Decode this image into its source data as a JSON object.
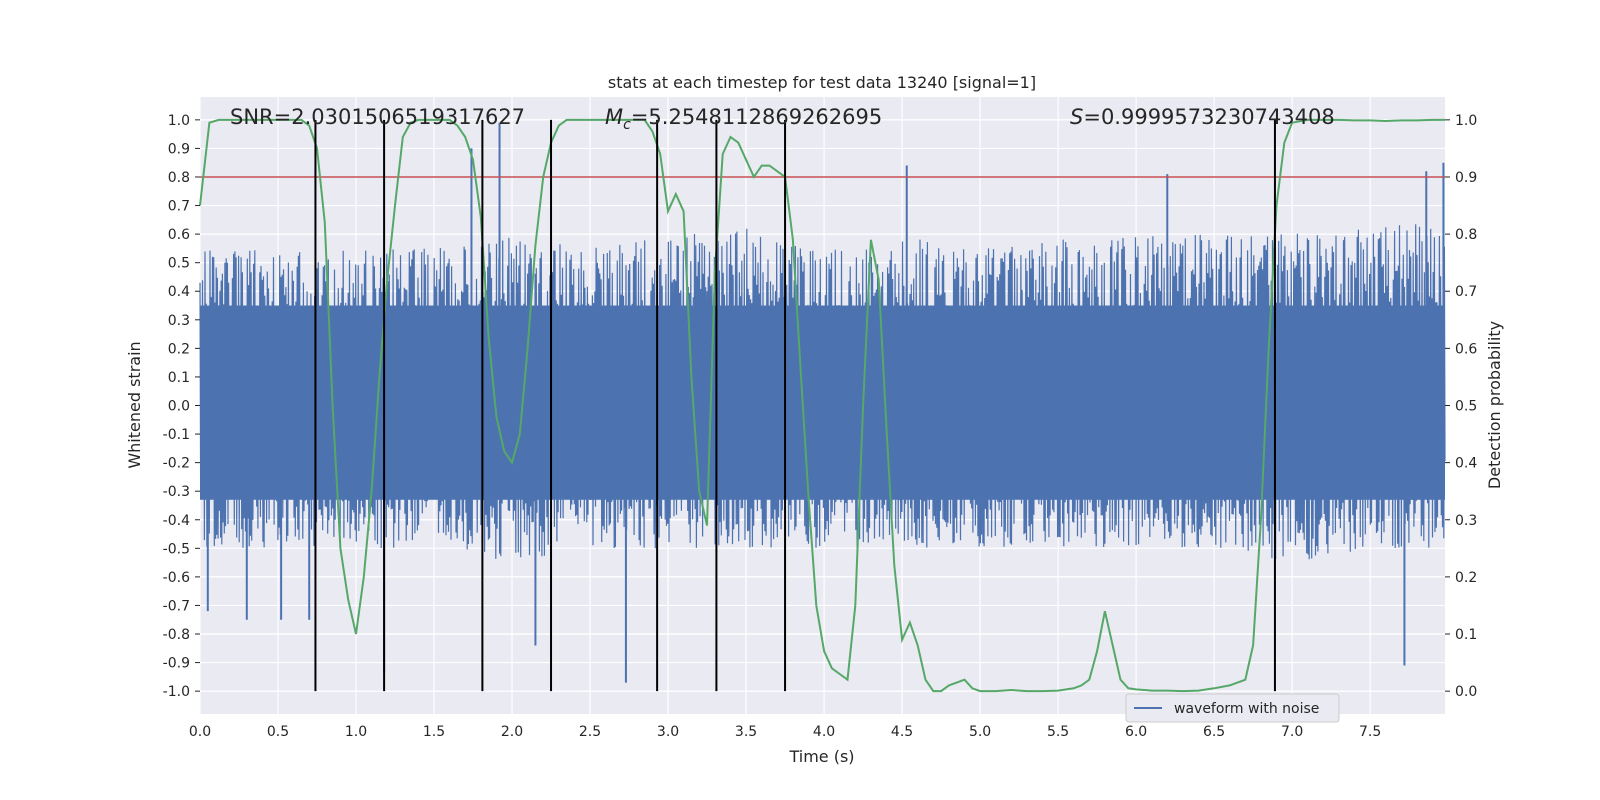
{
  "chart_data": {
    "type": "line",
    "title": "stats at each timestep for test data 13240 [signal=1]",
    "xlabel": "Time (s)",
    "ylabel": "Whitened strain",
    "ylabel_right": "Detection probability",
    "xlim": [
      0.0,
      7.98
    ],
    "ylim": [
      -1.08,
      1.08
    ],
    "ylim_right": [
      -0.04,
      1.04
    ],
    "x_ticks": [
      0.0,
      0.5,
      1.0,
      1.5,
      2.0,
      2.5,
      3.0,
      3.5,
      4.0,
      4.5,
      5.0,
      5.5,
      6.0,
      6.5,
      7.0,
      7.5
    ],
    "y_ticks": [
      -1.0,
      -0.9,
      -0.8,
      -0.7,
      -0.6,
      -0.5,
      -0.4,
      -0.3,
      -0.2,
      -0.1,
      0.0,
      0.1,
      0.2,
      0.3,
      0.4,
      0.5,
      0.6,
      0.7,
      0.8,
      0.9,
      1.0
    ],
    "y_ticks_right": [
      0.0,
      0.1,
      0.2,
      0.3,
      0.4,
      0.5,
      0.6,
      0.7,
      0.8,
      0.9,
      1.0
    ],
    "grid": true,
    "legend": {
      "entries": [
        "waveform with noise"
      ],
      "placement": "lower-center"
    },
    "annotations": {
      "snr": "SNR=2.0301506519317627",
      "mc_symbol": "M",
      "mc_sub": "c",
      "mc_value": "=5.2548112869262695",
      "s_symbol": "S",
      "s_value": "=0.9999573230743408"
    },
    "threshold": {
      "value": 0.9,
      "axis": "right",
      "color": "#c44e52"
    },
    "vlines": [
      0.74,
      1.18,
      1.81,
      2.25,
      2.93,
      3.31,
      3.75,
      6.89
    ],
    "series": [
      {
        "name": "waveform with noise",
        "axis": "left",
        "color": "#4c72b0",
        "envelope": {
          "x": [
            0.0,
            0.5,
            1.0,
            1.5,
            2.0,
            2.5,
            3.0,
            3.5,
            4.0,
            4.5,
            5.0,
            5.5,
            6.0,
            6.5,
            7.0,
            7.5,
            7.98
          ],
          "typical_max": [
            0.55,
            0.55,
            0.55,
            0.55,
            0.6,
            0.55,
            0.6,
            0.62,
            0.55,
            0.6,
            0.55,
            0.58,
            0.6,
            0.6,
            0.6,
            0.62,
            0.65
          ],
          "typical_min": [
            -0.5,
            -0.5,
            -0.5,
            -0.5,
            -0.55,
            -0.5,
            -0.5,
            -0.5,
            -0.5,
            -0.5,
            -0.5,
            -0.5,
            -0.5,
            -0.5,
            -0.55,
            -0.5,
            -0.5
          ]
        },
        "spikes": [
          {
            "x": 0.3,
            "y": -0.75
          },
          {
            "x": 0.52,
            "y": -0.75
          },
          {
            "x": 0.7,
            "y": -0.75
          },
          {
            "x": 1.18,
            "y": -0.93
          },
          {
            "x": 1.74,
            "y": 0.9
          },
          {
            "x": 1.92,
            "y": 0.99
          },
          {
            "x": 2.15,
            "y": -0.84
          },
          {
            "x": 2.73,
            "y": -0.97
          },
          {
            "x": 4.53,
            "y": 0.84
          },
          {
            "x": 6.2,
            "y": 0.81
          },
          {
            "x": 7.72,
            "y": -0.91
          },
          {
            "x": 7.86,
            "y": 0.82
          },
          {
            "x": 7.97,
            "y": 0.85
          },
          {
            "x": 0.05,
            "y": -0.72
          }
        ]
      },
      {
        "name": "detection probability",
        "axis": "right",
        "color": "#55a868",
        "x": [
          0.0,
          0.06,
          0.12,
          0.2,
          0.3,
          0.4,
          0.5,
          0.6,
          0.65,
          0.7,
          0.75,
          0.8,
          0.85,
          0.9,
          0.95,
          1.0,
          1.05,
          1.1,
          1.15,
          1.2,
          1.25,
          1.3,
          1.35,
          1.4,
          1.45,
          1.5,
          1.6,
          1.65,
          1.7,
          1.75,
          1.8,
          1.85,
          1.9,
          1.95,
          2.0,
          2.05,
          2.1,
          2.15,
          2.2,
          2.25,
          2.3,
          2.35,
          2.4,
          2.5,
          2.6,
          2.7,
          2.8,
          2.85,
          2.9,
          2.95,
          3.0,
          3.05,
          3.1,
          3.15,
          3.2,
          3.25,
          3.3,
          3.35,
          3.4,
          3.45,
          3.5,
          3.55,
          3.6,
          3.65,
          3.7,
          3.75,
          3.8,
          3.85,
          3.9,
          3.95,
          4.0,
          4.05,
          4.1,
          4.15,
          4.2,
          4.25,
          4.3,
          4.35,
          4.4,
          4.45,
          4.5,
          4.55,
          4.6,
          4.65,
          4.7,
          4.75,
          4.8,
          4.85,
          4.9,
          4.95,
          5.0,
          5.1,
          5.2,
          5.3,
          5.4,
          5.5,
          5.6,
          5.65,
          5.7,
          5.75,
          5.8,
          5.85,
          5.9,
          5.95,
          6.0,
          6.1,
          6.2,
          6.3,
          6.4,
          6.5,
          6.6,
          6.7,
          6.75,
          6.8,
          6.85,
          6.9,
          6.95,
          7.0,
          7.1,
          7.2,
          7.3,
          7.4,
          7.5,
          7.6,
          7.7,
          7.8,
          7.9,
          7.98
        ],
        "values": [
          0.85,
          0.995,
          1.0,
          1.0,
          1.0,
          1.0,
          1.0,
          1.0,
          1.0,
          0.99,
          0.95,
          0.82,
          0.5,
          0.25,
          0.16,
          0.1,
          0.2,
          0.35,
          0.55,
          0.72,
          0.85,
          0.97,
          0.995,
          1.0,
          1.0,
          1.0,
          1.0,
          0.99,
          0.97,
          0.93,
          0.83,
          0.62,
          0.48,
          0.42,
          0.4,
          0.45,
          0.6,
          0.78,
          0.9,
          0.96,
          0.99,
          1.0,
          1.0,
          1.0,
          1.0,
          1.0,
          1.0,
          1.0,
          0.98,
          0.94,
          0.84,
          0.87,
          0.84,
          0.55,
          0.35,
          0.29,
          0.73,
          0.94,
          0.97,
          0.96,
          0.93,
          0.9,
          0.92,
          0.92,
          0.91,
          0.9,
          0.79,
          0.56,
          0.34,
          0.15,
          0.07,
          0.04,
          0.03,
          0.02,
          0.15,
          0.5,
          0.79,
          0.72,
          0.46,
          0.22,
          0.09,
          0.12,
          0.08,
          0.02,
          0.0,
          0.0,
          0.01,
          0.015,
          0.02,
          0.005,
          0.0,
          0.0,
          0.002,
          0.0,
          0.0,
          0.001,
          0.005,
          0.01,
          0.02,
          0.07,
          0.14,
          0.08,
          0.02,
          0.005,
          0.003,
          0.001,
          0.001,
          0.0,
          0.001,
          0.005,
          0.01,
          0.02,
          0.08,
          0.3,
          0.6,
          0.85,
          0.96,
          0.995,
          1.0,
          1.0,
          1.0,
          0.999,
          0.999,
          0.998,
          0.999,
          0.999,
          1.0,
          1.0
        ]
      }
    ]
  }
}
